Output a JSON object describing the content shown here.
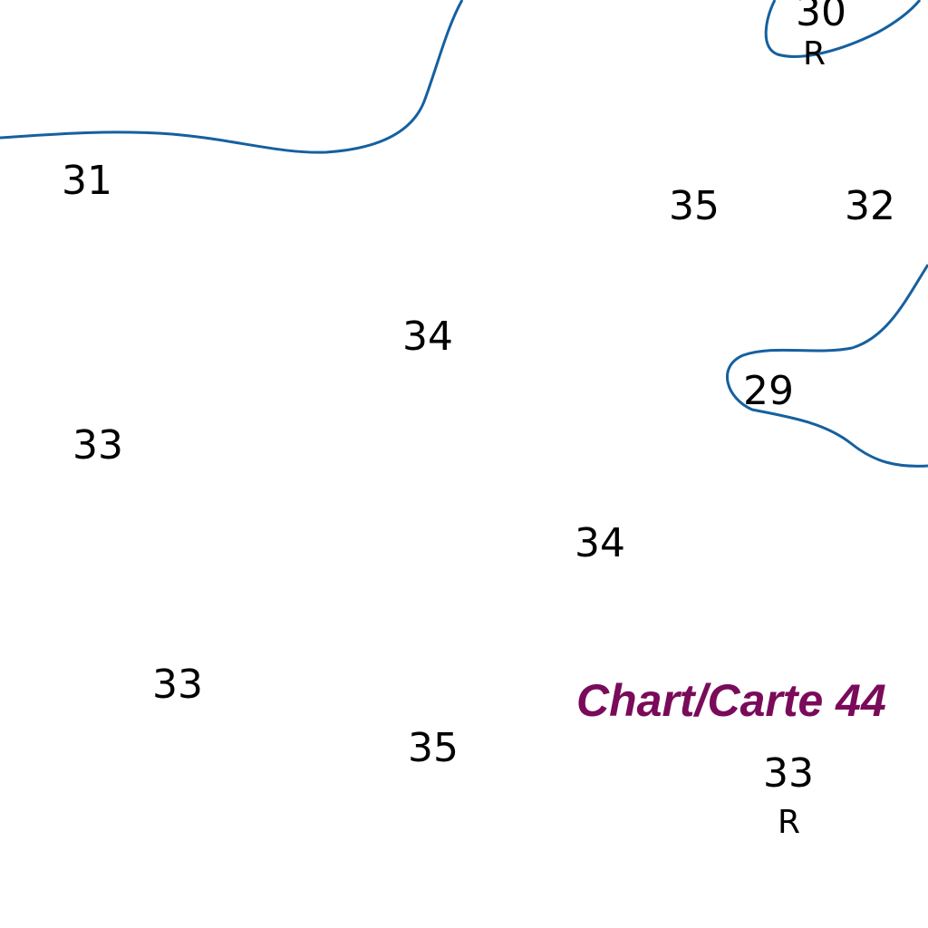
{
  "map": {
    "colors": {
      "background": "#ffffff",
      "contour": "#1560a0",
      "sounding": "#000000",
      "chart_reference": "#7a0a5a"
    },
    "soundings": {
      "s30": "30",
      "s31": "31",
      "s35a": "35",
      "s32": "32",
      "s34a": "34",
      "s29": "29",
      "s33a": "33",
      "s34b": "34",
      "s33b": "33",
      "s35b": "35",
      "s33c": "33"
    },
    "suffixes": {
      "r1": "R",
      "r2": "R"
    },
    "chart_reference": "Chart/Carte 44"
  }
}
